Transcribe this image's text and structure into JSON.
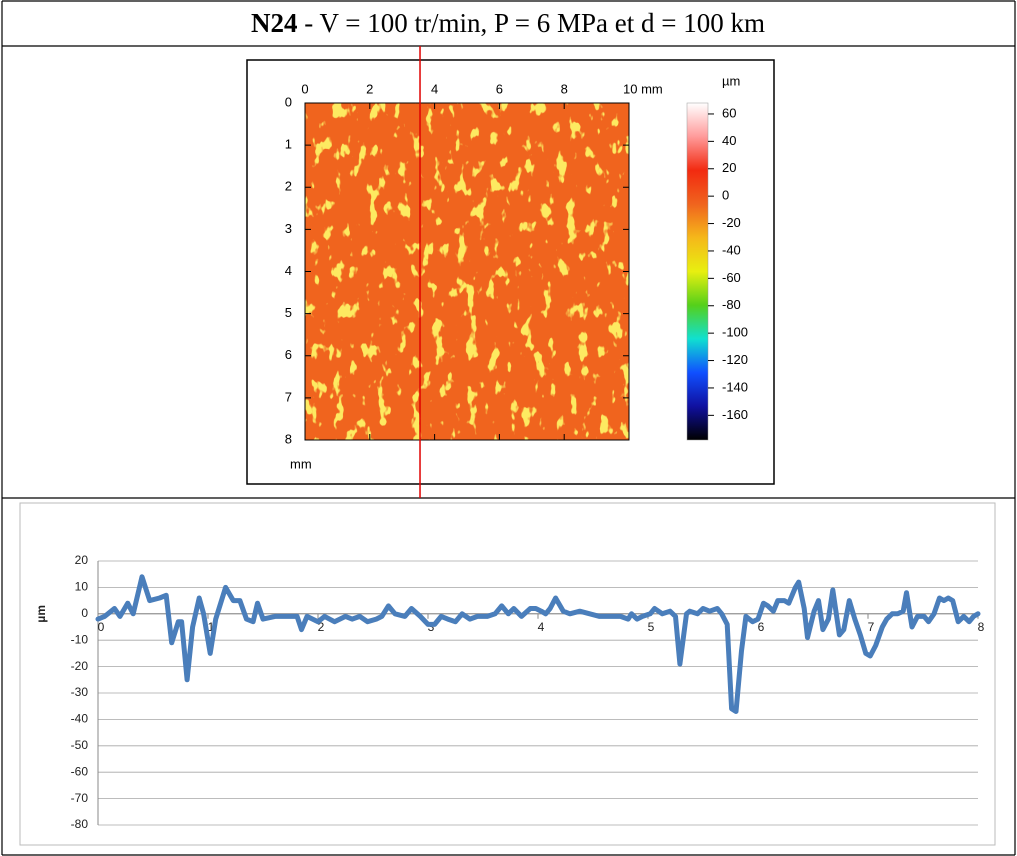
{
  "title": {
    "bold": "N24",
    "rest": "- V = 100 tr/min, P = 6 MPa et d = 100 km"
  },
  "chart_data": [
    {
      "type": "heatmap",
      "xlim": [
        0,
        10
      ],
      "xticks": [
        0,
        2,
        4,
        6,
        8,
        {
          "value": 10,
          "label": "10 mm"
        }
      ],
      "ylim": [
        0,
        8
      ],
      "yticks": [
        0,
        1,
        2,
        3,
        4,
        5,
        6,
        7,
        8
      ],
      "ylabel": "mm",
      "color": "#f0641e",
      "colorbar": {
        "label": "µm",
        "lim": [
          -178,
          68
        ],
        "ticks": [
          60,
          40,
          20,
          0,
          -20,
          -40,
          -60,
          -80,
          -100,
          -120,
          -140,
          -160
        ],
        "colormap": [
          "#ffffff",
          "#ff9a9a",
          "#f22a10",
          "#f0641e",
          "#f5b81a",
          "#e8ef10",
          "#55d01a",
          "#10e0d0",
          "#1050ff",
          "#1010a0",
          "#000000"
        ]
      },
      "profile_x": 3.55,
      "profile_color": "#e00000"
    },
    {
      "type": "line",
      "ylabel": "µm",
      "xlim": [
        0,
        8
      ],
      "xticks": [
        0,
        1,
        2,
        3,
        4,
        5,
        6,
        7,
        8
      ],
      "ylim": [
        -80,
        20
      ],
      "yticks": [
        20,
        10,
        0,
        -10,
        -20,
        -30,
        -40,
        -50,
        -60,
        -70,
        -80
      ],
      "grid": true,
      "series": [
        {
          "color": "#4a7ebb",
          "x": [
            0,
            0.06,
            0.15,
            0.2,
            0.27,
            0.32,
            0.4,
            0.47,
            0.56,
            0.62,
            0.67,
            0.73,
            0.76,
            0.81,
            0.86,
            0.92,
            0.96,
            1.02,
            1.07,
            1.16,
            1.23,
            1.29,
            1.35,
            1.41,
            1.45,
            1.5,
            1.61,
            1.75,
            1.81,
            1.85,
            1.9,
            2.0,
            2.06,
            2.15,
            2.25,
            2.31,
            2.38,
            2.45,
            2.53,
            2.58,
            2.64,
            2.7,
            2.79,
            2.85,
            2.93,
            3.0,
            3.06,
            3.12,
            3.18,
            3.25,
            3.31,
            3.38,
            3.45,
            3.54,
            3.61,
            3.67,
            3.73,
            3.78,
            3.85,
            3.93,
            3.98,
            4.03,
            4.07,
            4.11,
            4.16,
            4.23,
            4.29,
            4.38,
            4.47,
            4.56,
            4.65,
            4.75,
            4.82,
            4.85,
            4.9,
            4.95,
            5.02,
            5.06,
            5.13,
            5.2,
            5.25,
            5.29,
            5.35,
            5.38,
            5.45,
            5.5,
            5.56,
            5.63,
            5.67,
            5.72,
            5.76,
            5.8,
            5.85,
            5.89,
            5.95,
            6.0,
            6.05,
            6.09,
            6.14,
            6.18,
            6.24,
            6.28,
            6.34,
            6.37,
            6.42,
            6.45,
            6.51,
            6.55,
            6.59,
            6.64,
            6.68,
            6.74,
            6.78,
            6.83,
            6.88,
            6.93,
            6.98,
            7.02,
            7.07,
            7.13,
            7.17,
            7.22,
            7.27,
            7.32,
            7.35,
            7.4,
            7.45,
            7.51,
            7.55,
            7.6,
            7.65,
            7.69,
            7.73,
            7.77,
            7.82,
            7.87,
            7.92,
            7.96,
            8.0
          ],
          "values": [
            -2,
            -1,
            2,
            -1,
            4,
            0,
            14,
            5,
            6,
            7,
            -11,
            -3,
            -3,
            -25,
            -5,
            6,
            0,
            -15,
            -2,
            10,
            5,
            5,
            -2,
            -3,
            4,
            -2,
            -1,
            -1,
            -1,
            -6,
            -1,
            -3,
            -1,
            -3,
            -1,
            -2,
            -1,
            -3,
            -2,
            -1,
            3,
            0,
            -1,
            2,
            -1,
            -4,
            -4,
            -1,
            -2,
            -3,
            0,
            -2,
            -1,
            -1,
            0,
            3,
            0,
            2,
            -1,
            2,
            2,
            1,
            0,
            2,
            6,
            1,
            0,
            1,
            0,
            -1,
            -1,
            -1,
            -2,
            0,
            -2,
            -1,
            0,
            2,
            0,
            1,
            -1,
            -19,
            0,
            1,
            0,
            2,
            1,
            2,
            0,
            -4,
            -36,
            -37,
            -14,
            -1,
            -3,
            -2,
            4,
            3,
            1,
            5,
            5,
            4,
            10,
            12,
            2,
            -9,
            1,
            5,
            -6,
            -2,
            9,
            -8,
            -6,
            5,
            -2,
            -8,
            -15,
            -16,
            -12,
            -5,
            -2,
            0,
            0,
            1,
            8,
            -5,
            -1,
            -1,
            -3,
            0,
            6,
            5,
            6,
            5,
            -3,
            -1,
            -3,
            -1,
            0
          ]
        }
      ]
    }
  ]
}
